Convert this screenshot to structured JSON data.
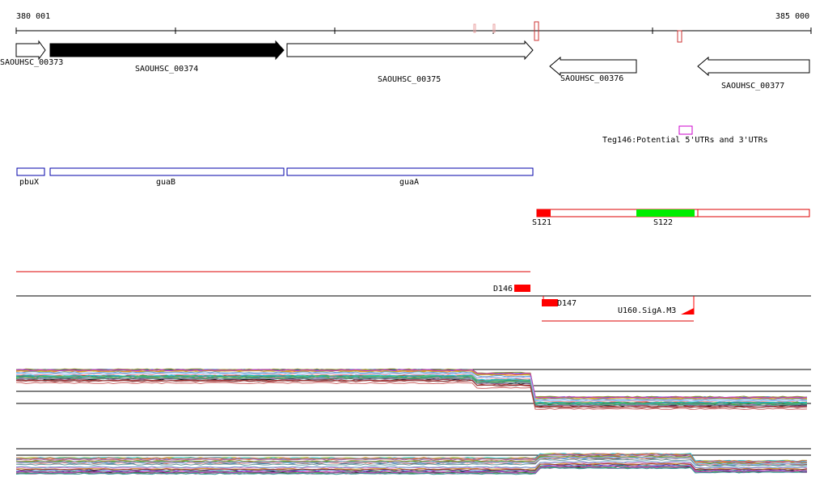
{
  "ruler": {
    "start_label": "380 001",
    "end_label": "385 000"
  },
  "genes_locus": [
    {
      "id": "SAOUHSC_00373",
      "strand": "+",
      "fill": "#ffffff"
    },
    {
      "id": "SAOUHSC_00374",
      "strand": "+",
      "fill": "#000000"
    },
    {
      "id": "SAOUHSC_00375",
      "strand": "+",
      "fill": "#ffffff"
    },
    {
      "id": "SAOUHSC_00376",
      "strand": "-",
      "fill": "#ffffff"
    },
    {
      "id": "SAOUHSC_00377",
      "strand": "-",
      "fill": "#ffffff"
    }
  ],
  "annotations": {
    "teg_label": "Teg146:Potential 5'UTRs and 3'UTRs"
  },
  "gene_names": [
    "pbuX",
    "guaB",
    "guaA"
  ],
  "segments": [
    "S121",
    "S122"
  ],
  "features": {
    "d146": "D146",
    "d147": "D147",
    "u160": "U160.SigA.M3"
  },
  "colors": {
    "gene_name_box": "#0000aa",
    "segment_red": "#ff0000",
    "segment_green": "#00ee00",
    "teg_box": "#cc00cc",
    "track_line": "#dd0000",
    "axis": "#000000"
  }
}
